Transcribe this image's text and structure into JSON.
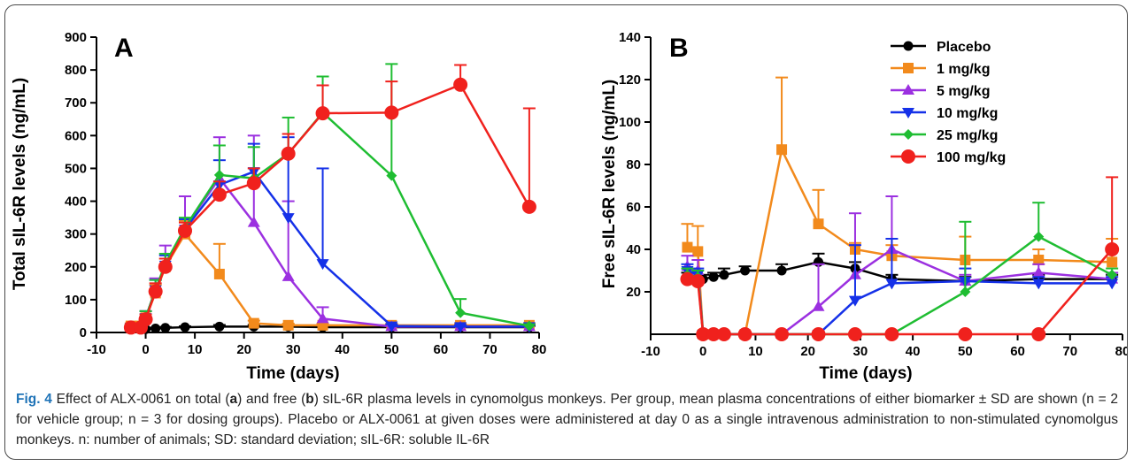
{
  "colors": {
    "Placebo": "#000000",
    "1 mg/kg": "#f28a1c",
    "5 mg/kg": "#9b30e0",
    "10 mg/kg": "#1531e8",
    "25 mg/kg": "#1fbd32",
    "100 mg/kg": "#f0211d"
  },
  "markers": {
    "Placebo": "circle",
    "1 mg/kg": "square",
    "5 mg/kg": "triangle-up",
    "10 mg/kg": "triangle-down",
    "25 mg/kg": "diamond",
    "100 mg/kg": "circle-large"
  },
  "chart_data": [
    {
      "panel": "A",
      "type": "line",
      "xlabel": "Time (days)",
      "ylabel": "Total sIL-6R levels (ng/mL)",
      "xlim": [
        -10,
        80
      ],
      "ylim": [
        0,
        900
      ],
      "xticks": [
        "-10",
        "0",
        "10",
        "20",
        "30",
        "40",
        "50",
        "60",
        "70",
        "80"
      ],
      "yticks": [
        "0",
        "100",
        "200",
        "300",
        "400",
        "500",
        "600",
        "700",
        "800",
        "900"
      ],
      "legend": false,
      "series": [
        {
          "name": "Placebo",
          "x": [
            -3,
            -1,
            0,
            2,
            4,
            8,
            15,
            22,
            29,
            36,
            50,
            64,
            78
          ],
          "y": [
            15,
            12,
            10,
            12,
            14,
            16,
            18,
            18,
            18,
            16,
            16,
            16,
            16
          ],
          "err": [
            3,
            3,
            3,
            3,
            3,
            3,
            5,
            5,
            5,
            4,
            4,
            4,
            4
          ]
        },
        {
          "name": "1 mg/kg",
          "x": [
            -3,
            -1,
            0,
            2,
            4,
            8,
            15,
            22,
            29,
            36,
            50,
            64,
            78
          ],
          "y": [
            20,
            20,
            45,
            120,
            200,
            300,
            178,
            28,
            22,
            22,
            22,
            22,
            22
          ],
          "err": [
            8,
            8,
            20,
            25,
            25,
            40,
            92,
            8,
            5,
            5,
            5,
            5,
            5
          ]
        },
        {
          "name": "5 mg/kg",
          "x": [
            -3,
            -1,
            0,
            2,
            4,
            8,
            15,
            22,
            29,
            36,
            50,
            64,
            78
          ],
          "y": [
            18,
            18,
            45,
            130,
            205,
            320,
            470,
            335,
            170,
            42,
            18,
            18,
            18
          ],
          "err": [
            6,
            6,
            20,
            35,
            60,
            95,
            125,
            265,
            230,
            35,
            5,
            5,
            5
          ]
        },
        {
          "name": "10 mg/kg",
          "x": [
            -3,
            -1,
            0,
            2,
            4,
            8,
            15,
            22,
            29,
            36,
            50,
            64,
            78
          ],
          "y": [
            15,
            15,
            45,
            130,
            205,
            315,
            450,
            490,
            350,
            210,
            20,
            18,
            18
          ],
          "err": [
            5,
            5,
            20,
            30,
            30,
            30,
            75,
            85,
            245,
            290,
            5,
            5,
            5
          ]
        },
        {
          "name": "25 mg/kg",
          "x": [
            -3,
            -1,
            0,
            2,
            4,
            8,
            15,
            22,
            29,
            36,
            50,
            64,
            78
          ],
          "y": [
            18,
            18,
            45,
            130,
            210,
            320,
            480,
            470,
            545,
            670,
            478,
            60,
            20
          ],
          "err": [
            5,
            5,
            20,
            30,
            30,
            30,
            90,
            95,
            110,
            110,
            340,
            42,
            5
          ]
        },
        {
          "name": "100 mg/kg",
          "x": [
            -3,
            -1,
            0,
            2,
            4,
            8,
            15,
            22,
            29,
            36,
            50,
            64,
            78
          ],
          "y": [
            15,
            15,
            40,
            125,
            200,
            310,
            420,
            455,
            545,
            668,
            670,
            755,
            383
          ],
          "err": [
            5,
            5,
            15,
            25,
            25,
            25,
            40,
            45,
            60,
            85,
            95,
            60,
            300
          ]
        }
      ]
    },
    {
      "panel": "B",
      "type": "line",
      "xlabel": "Time (days)",
      "ylabel": "Free sIL-6R levels (ng/mL)",
      "xlim": [
        -10,
        80
      ],
      "ylim": [
        0,
        140
      ],
      "xticks": [
        "-10",
        "0",
        "10",
        "20",
        "30",
        "40",
        "50",
        "60",
        "70",
        "80"
      ],
      "yticks": [
        "20",
        "40",
        "60",
        "80",
        "100",
        "120",
        "140"
      ],
      "legend": true,
      "legend_position": "top-right",
      "series": [
        {
          "name": "Placebo",
          "x": [
            -3,
            -1,
            0,
            2,
            4,
            8,
            15,
            22,
            29,
            36,
            50,
            64,
            78
          ],
          "y": [
            27,
            26,
            26,
            27,
            28,
            30,
            30,
            34,
            31,
            26,
            25,
            26,
            26
          ],
          "err": [
            2,
            2,
            2,
            2,
            3,
            2,
            3,
            4,
            3,
            2,
            2,
            2,
            2
          ]
        },
        {
          "name": "1 mg/kg",
          "x": [
            -3,
            -1,
            0,
            8,
            15,
            22,
            29,
            36,
            50,
            64,
            78
          ],
          "y": [
            41,
            39,
            0,
            0,
            87,
            52,
            40,
            37,
            35,
            35,
            34
          ],
          "err": [
            11,
            12,
            0,
            0,
            34,
            16,
            3,
            5,
            11,
            5,
            11
          ]
        },
        {
          "name": "5 mg/kg",
          "x": [
            -3,
            -1,
            0,
            15,
            22,
            29,
            36,
            50,
            64,
            78
          ],
          "y": [
            32,
            30,
            0,
            0,
            13,
            28,
            40,
            25,
            29,
            26
          ],
          "err": [
            5,
            5,
            0,
            0,
            20,
            29,
            25,
            3,
            4,
            3
          ]
        },
        {
          "name": "10 mg/kg",
          "x": [
            -3,
            -1,
            0,
            22,
            29,
            36,
            50,
            64,
            78
          ],
          "y": [
            30,
            28,
            0,
            0,
            16,
            24,
            25,
            24,
            24
          ],
          "err": [
            3,
            3,
            0,
            0,
            26,
            21,
            6,
            3,
            3
          ]
        },
        {
          "name": "25 mg/kg",
          "x": [
            -3,
            -1,
            0,
            36,
            50,
            64,
            78
          ],
          "y": [
            28,
            27,
            0,
            0,
            20,
            46,
            28
          ],
          "err": [
            3,
            3,
            0,
            0,
            33,
            16,
            3
          ]
        },
        {
          "name": "100 mg/kg",
          "x": [
            -3,
            -1,
            0,
            2,
            4,
            8,
            15,
            22,
            29,
            36,
            50,
            64,
            78
          ],
          "y": [
            26,
            25,
            0,
            0,
            0,
            0,
            0,
            0,
            0,
            0,
            0,
            0,
            40
          ],
          "err": [
            0,
            0,
            0,
            0,
            0,
            0,
            0,
            0,
            0,
            0,
            0,
            0,
            34
          ]
        }
      ]
    }
  ],
  "panel_a": {
    "label": "A",
    "xlabel": "Time (days)",
    "ylabel": "Total sIL-6R levels (ng/mL)"
  },
  "panel_b": {
    "label": "B",
    "xlabel": "Time (days)",
    "ylabel": "Free sIL-6R levels (ng/mL)"
  },
  "caption": {
    "fig_label": "Fig. 4",
    "p1": " Effect of ALX-0061 on total (",
    "a": "a",
    "p2": ") and free (",
    "b": "b",
    "p3": ") sIL-6R plasma levels in cynomolgus monkeys. Per group, mean plasma concentrations of either biomarker ± SD are shown (n = 2 for vehicle group; n = 3 for dosing groups). Placebo or ALX-0061 at given doses were administered at day 0 as a single intravenous administration to non-stimulated cynomolgus monkeys. n: number of animals; SD: standard deviation; sIL-6R: soluble IL-6R"
  }
}
